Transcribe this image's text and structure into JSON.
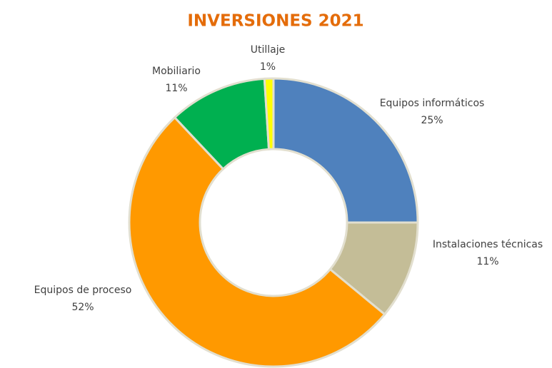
{
  "chart_data": {
    "type": "donut",
    "title": "INVERSIONES 2021",
    "categories": [
      "Equipos informáticos",
      "Instalaciones técnicas",
      "Equipos de proceso",
      "Mobiliario",
      "Utillaje"
    ],
    "values": [
      25,
      11,
      52,
      11,
      1
    ],
    "value_labels": [
      "25%",
      "11%",
      "52%",
      "11%",
      "1%"
    ],
    "colors": [
      "#4f81bd",
      "#c4bd97",
      "#ff9900",
      "#00b050",
      "#ffff00"
    ]
  }
}
